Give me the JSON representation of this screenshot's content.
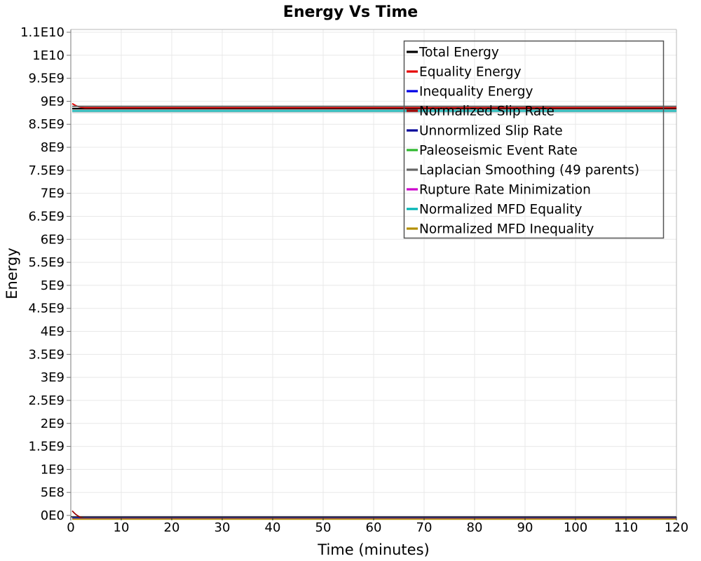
{
  "chart_data": {
    "type": "line",
    "title": "Energy Vs Time",
    "xlabel": "Time (minutes)",
    "ylabel": "Energy",
    "xlim": [
      0,
      120
    ],
    "x_ticks": [
      "0",
      "10",
      "20",
      "30",
      "40",
      "50",
      "60",
      "70",
      "80",
      "90",
      "100",
      "110",
      "120"
    ],
    "y_tick_labels_top_to_bottom": [
      "1.1E10",
      "1E10",
      "9.5E9",
      "9E9",
      "8.5E9",
      "8E9",
      "7.5E9",
      "7E9",
      "6.5E9",
      "6E9",
      "5.5E9",
      "5E9",
      "4.5E9",
      "4E9",
      "3.5E9",
      "3E9",
      "2.5E9",
      "2E9",
      "1.5E9",
      "1E9",
      "5E8",
      "0E0"
    ],
    "y_tick_step_value": 500000000.0,
    "grid": true,
    "legend_position": "inside-top-right",
    "series": [
      {
        "name": "Total Energy",
        "color": "#000000",
        "width": 2.2,
        "flat_value": 8840000000.0
      },
      {
        "name": "Equality Energy",
        "color": "#e60000",
        "width": 2.0,
        "flat_value": 8860000000.0,
        "start_value": 8950000000.0
      },
      {
        "name": "Inequality Energy",
        "color": "#0000e6",
        "width": 1.2,
        "flat_value": 5000000.0,
        "near_zero": true
      },
      {
        "name": "Normalized Slip Rate",
        "color": "#990000",
        "width": 1.7,
        "flat_value": 12000000.0,
        "start_value": 100000000.0,
        "near_zero": true
      },
      {
        "name": "Unnormlized Slip Rate",
        "color": "#000099",
        "width": 1.2,
        "flat_value": 5000000.0,
        "near_zero": true
      },
      {
        "name": "Paleoseismic Event Rate",
        "color": "#2db82d",
        "width": 1.3,
        "flat_value": 8000000.0,
        "near_zero": true
      },
      {
        "name": "Laplacian Smoothing (49 parents)",
        "color": "#666666",
        "width": 2.0,
        "flat_value": 8890000000.0,
        "halo_value": 8800000000.0,
        "halo_color": "#ccd4d6",
        "halo_width": 8
      },
      {
        "name": "Rupture Rate Minimization",
        "color": "#cc00cc",
        "width": 1.2,
        "flat_value": 6000000.0,
        "near_zero": true
      },
      {
        "name": "Normalized MFD Equality",
        "color": "#00b3b3",
        "width": 2.0,
        "flat_value": 8790000000.0
      },
      {
        "name": "Normalized MFD Inequality",
        "color": "#b38f00",
        "width": 1.7,
        "flat_value": 15000000.0,
        "near_zero": true
      }
    ],
    "colors": {
      "grid": "#e8e8e8",
      "border_light": "#b8b8b8",
      "axis_left": "#999999",
      "axis_bottom": "#333333",
      "legend_border": "#555555",
      "tick_mark": "#777777"
    }
  }
}
